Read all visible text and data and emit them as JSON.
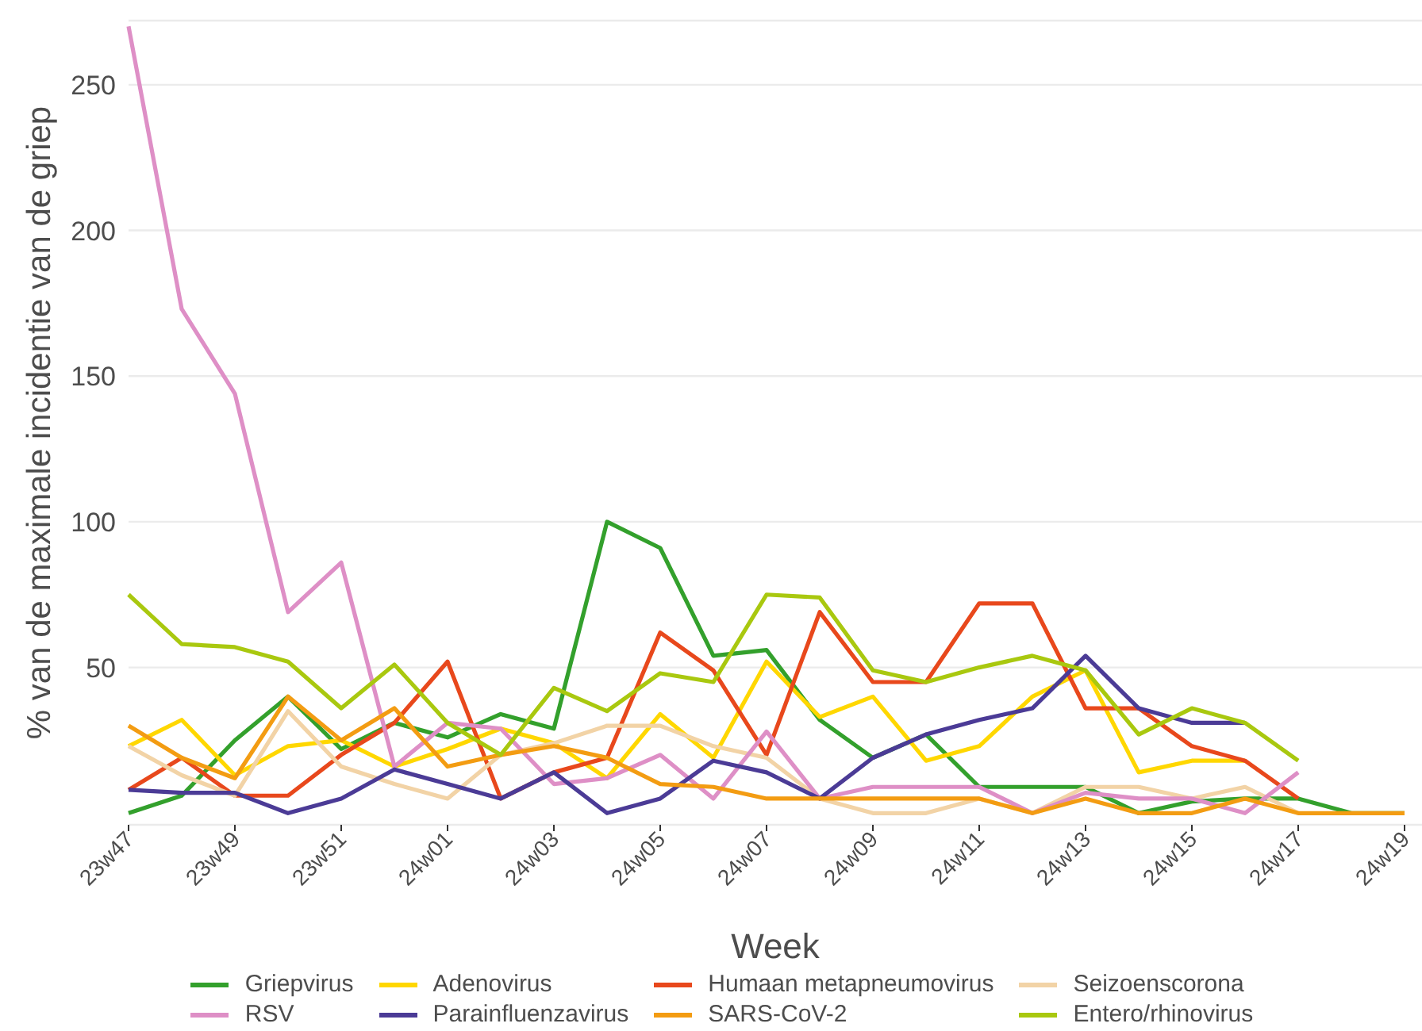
{
  "chart_data": {
    "type": "line",
    "xlabel": "Week",
    "ylabel": "% van de maximale incidentie van de griep",
    "categories": [
      "23w47",
      null,
      "23w49",
      null,
      "23w51",
      null,
      "24w01",
      null,
      "24w03",
      null,
      "24w05",
      null,
      "24w07",
      null,
      "24w09",
      null,
      "24w11",
      null,
      "24w13",
      null,
      "24w15",
      null,
      "24w17",
      null,
      "24w19"
    ],
    "series": [
      {
        "name": "Griepvirus",
        "color": "#33a02c",
        "values": [
          0,
          6,
          25,
          40,
          22,
          31,
          26,
          34,
          29,
          100,
          91,
          54,
          56,
          32,
          19,
          27,
          9,
          9,
          9,
          0,
          4,
          5,
          5,
          0,
          0
        ]
      },
      {
        "name": "Adenovirus",
        "color": "#ffd700",
        "values": [
          23,
          32,
          13,
          23,
          25,
          16,
          22,
          29,
          24,
          12,
          34,
          19,
          52,
          33,
          40,
          18,
          23,
          40,
          49,
          14,
          18,
          18,
          null,
          null,
          null
        ]
      },
      {
        "name": "Humaan metapneumovirus",
        "color": "#e8481c",
        "values": [
          8,
          19,
          6,
          6,
          20,
          31,
          52,
          5,
          14,
          19,
          62,
          49,
          20,
          69,
          45,
          45,
          72,
          72,
          36,
          36,
          23,
          18,
          5,
          null,
          null
        ]
      },
      {
        "name": "Seizoenscorona",
        "color": "#f2d3a6",
        "values": [
          23,
          13,
          6,
          35,
          16,
          10,
          5,
          20,
          24,
          30,
          30,
          23,
          19,
          5,
          0,
          0,
          5,
          0,
          9,
          9,
          5,
          9,
          0,
          null,
          null
        ]
      },
      {
        "name": "RSV",
        "color": "#de8fc6",
        "values": [
          270,
          173,
          144,
          69,
          86,
          16,
          31,
          29,
          10,
          12,
          20,
          5,
          28,
          5,
          9,
          9,
          9,
          0,
          7,
          5,
          5,
          0,
          14,
          null,
          null
        ]
      },
      {
        "name": "Parainfluenzavirus",
        "color": "#4b3b96",
        "values": [
          8,
          7,
          7,
          0,
          5,
          15,
          10,
          5,
          14,
          0,
          5,
          18,
          14,
          5,
          19,
          27,
          32,
          36,
          54,
          36,
          31,
          31,
          null,
          null,
          null
        ]
      },
      {
        "name": "SARS-CoV-2",
        "color": "#f39c12",
        "values": [
          30,
          19,
          12,
          40,
          25,
          36,
          16,
          20,
          23,
          19,
          10,
          9,
          5,
          5,
          5,
          5,
          5,
          0,
          5,
          0,
          0,
          5,
          0,
          0,
          0
        ]
      },
      {
        "name": "Entero/rhinovirus",
        "color": "#a9c80f",
        "values": [
          75,
          58,
          57,
          52,
          36,
          51,
          31,
          20,
          43,
          35,
          48,
          45,
          75,
          74,
          49,
          45,
          50,
          54,
          49,
          27,
          36,
          31,
          18,
          null,
          null
        ]
      }
    ],
    "ylim": [
      -4,
      272
    ],
    "yticks": [
      50,
      100,
      150,
      200,
      250
    ],
    "grid": "y",
    "legend": "bottom",
    "marker": "none",
    "line_style": "solid"
  }
}
